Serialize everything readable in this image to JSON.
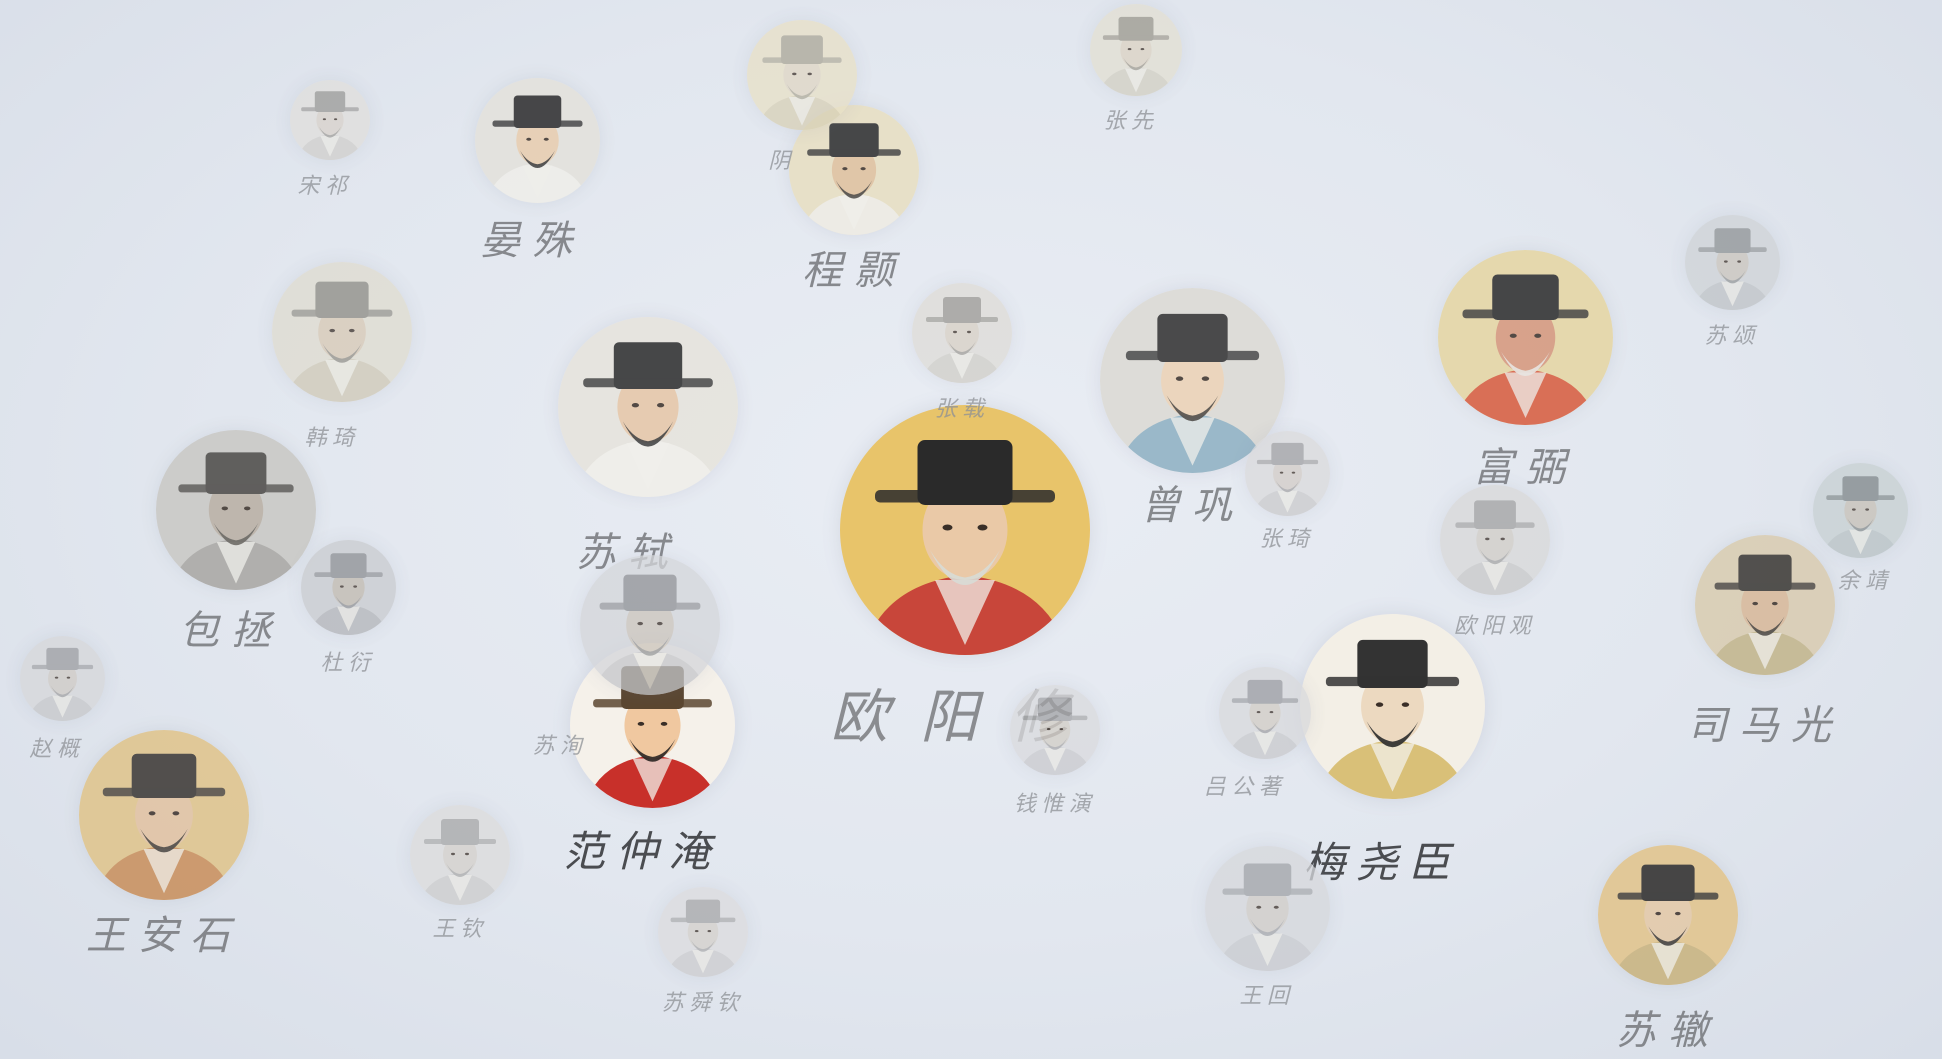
{
  "people": [
    {
      "id": "ouyangxiu",
      "name": "欧阳修",
      "tier": "hero",
      "palette": {
        "bg": "#e8c46a",
        "robe": "#c8463a",
        "hat": "#2a2a2a",
        "face": "#eac9a7",
        "beard": "#d8dcd6"
      }
    },
    {
      "id": "fanzhongyan",
      "name": "范仲淹",
      "tier": "strong",
      "palette": {
        "bg": "#f5f1ea",
        "robe": "#c8302a",
        "hat": "#5a4630",
        "face": "#f0c8a0",
        "beard": "#2a2522"
      }
    },
    {
      "id": "meiyaochen",
      "name": "梅尧臣",
      "tier": "strong",
      "palette": {
        "bg": "#f3efe6",
        "robe": "#d9c078",
        "hat": "#333333",
        "face": "#ecd9c0",
        "beard": "#2b2b2b"
      }
    },
    {
      "id": "sushi",
      "name": "苏轼",
      "tier": "mid",
      "palette": {
        "bg": "#e7e4dc",
        "robe": "#f1efe9",
        "hat": "#2b2b2b",
        "face": "#e6c6a6",
        "beard": "#2b2b2b"
      }
    },
    {
      "id": "zenggong",
      "name": "曾巩",
      "tier": "mid",
      "palette": {
        "bg": "#dcdad4",
        "robe": "#8db0c2",
        "hat": "#2f2f2f",
        "face": "#ecd2b4",
        "beard": "#3a3530"
      }
    },
    {
      "id": "fubi",
      "name": "富弼",
      "tier": "mid",
      "palette": {
        "bg": "#e6d6a2",
        "robe": "#d85a3c",
        "hat": "#2a2a2a",
        "face": "#d6967a",
        "beard": "#e9e6e0"
      }
    },
    {
      "id": "simaguang",
      "name": "司马光",
      "tier": "mid",
      "palette": {
        "bg": "#d9ccb0",
        "robe": "#c2b48a",
        "hat": "#3a3632",
        "face": "#d8b898",
        "beard": "#3a3530"
      }
    },
    {
      "id": "wanganshi",
      "name": "王安石",
      "tier": "mid",
      "palette": {
        "bg": "#e0c48a",
        "robe": "#c98e5a",
        "hat": "#3a3632",
        "face": "#e2c2a0",
        "beard": "#3a3530"
      }
    },
    {
      "id": "baozheng",
      "name": "包拯",
      "tier": "mid",
      "palette": {
        "bg": "#c9c8c4",
        "robe": "#a8a6a2",
        "hat": "#4a4844",
        "face": "#b8aea2",
        "beard": "#5a5650"
      }
    },
    {
      "id": "suzhe",
      "name": "苏辙",
      "tier": "mid",
      "palette": {
        "bg": "#e2c48a",
        "robe": "#c9b27c",
        "hat": "#2c2a28",
        "face": "#e4c8a6",
        "beard": "#2c2a28"
      }
    },
    {
      "id": "yanshu",
      "name": "晏殊",
      "tier": "mid",
      "palette": {
        "bg": "#e4e2dc",
        "robe": "#efeee9",
        "hat": "#2b2b2b",
        "face": "#e8cdae",
        "beard": "#2b2b2b"
      }
    },
    {
      "id": "chengyi",
      "name": "程颢",
      "tier": "mid",
      "palette": {
        "bg": "#e8dfc2",
        "robe": "#efece4",
        "hat": "#2b2b2b",
        "face": "#e0c09c",
        "beard": "#3a3632"
      }
    },
    {
      "id": "hanqi",
      "name": "韩琦",
      "tier": "dim",
      "palette": {
        "bg": "#dfdccf",
        "robe": "#cfc9b6",
        "hat": "#8c8a82",
        "face": "#d8c8b4",
        "beard": "#8c8a82"
      }
    },
    {
      "id": "duyan",
      "name": "杜衍",
      "tier": "dim",
      "palette": {
        "bg": "#c9cbcf",
        "robe": "#b2b4b8",
        "hat": "#8c8e92",
        "face": "#c0b8ae",
        "beard": "#8c8e92"
      }
    },
    {
      "id": "zhangxian",
      "name": "张先",
      "tier": "dim",
      "palette": {
        "bg": "#e2dfd2",
        "robe": "#d2cfc2",
        "hat": "#9a978c",
        "face": "#dcd2c2",
        "beard": "#9a978c"
      }
    },
    {
      "id": "zhangzai",
      "name": "张载",
      "tier": "dim",
      "palette": {
        "bg": "#dedcd7",
        "robe": "#d0cec8",
        "hat": "#9a9892",
        "face": "#d8cfc4",
        "beard": "#9a9892"
      }
    },
    {
      "id": "lvgongzhu",
      "name": "吕公著",
      "tier": "dim",
      "palette": {
        "bg": "#d8d9dc",
        "robe": "#c8c9cc",
        "hat": "#9a9ba0",
        "face": "#d2ccc4",
        "beard": "#9a9ba0"
      }
    },
    {
      "id": "wanghui",
      "name": "王回",
      "tier": "dim",
      "palette": {
        "bg": "#d6d8dc",
        "robe": "#c8cace",
        "hat": "#a0a2a6",
        "face": "#d0ccc6",
        "beard": "#a0a2a6"
      }
    },
    {
      "id": "suxun",
      "name": "苏洵",
      "tier": "dim",
      "palette": {
        "bg": "#d4d6da",
        "robe": "#c4c6ca",
        "hat": "#8e9094",
        "face": "#cbc4bb",
        "beard": "#8e9094"
      }
    },
    {
      "id": "yuanjing",
      "name": "余靖",
      "tier": "dim",
      "palette": {
        "bg": "#c7d0d2",
        "robe": "#b8c2c4",
        "hat": "#7e8688",
        "face": "#c6c0b6",
        "beard": "#7e8688"
      }
    },
    {
      "id": "ouyangguan",
      "name": "欧阳观",
      "tier": "dim",
      "palette": {
        "bg": "#d8d8d8",
        "robe": "#c8c8c8",
        "hat": "#a0a0a0",
        "face": "#d0ccc6",
        "beard": "#a0a0a0"
      }
    },
    {
      "id": "zhangqi",
      "name": "张琦",
      "tier": "dim",
      "palette": {
        "bg": "#dadadc",
        "robe": "#cacacc",
        "hat": "#a0a0a2",
        "face": "#d2ccc6",
        "beard": "#a0a0a2"
      }
    },
    {
      "id": "qianweiyan",
      "name": "钱惟演",
      "tier": "dim",
      "palette": {
        "bg": "#d9dadd",
        "robe": "#c9cacd",
        "hat": "#a2a3a6",
        "face": "#d2cdc6",
        "beard": "#a2a3a6"
      }
    },
    {
      "id": "wangcen",
      "name": "王钦",
      "tier": "dim",
      "palette": {
        "bg": "#dcdcdc",
        "robe": "#cccccc",
        "hat": "#a6a6a6",
        "face": "#d4d0ca",
        "beard": "#a6a6a6"
      }
    },
    {
      "id": "suyoudi",
      "name": "苏舜钦",
      "tier": "dim",
      "palette": {
        "bg": "#dcdcde",
        "robe": "#ccccce",
        "hat": "#a6a6a8",
        "face": "#d4d0ca",
        "beard": "#a6a6a8"
      }
    },
    {
      "id": "zhaogai",
      "name": "赵概",
      "tier": "dim",
      "palette": {
        "bg": "#d6d7da",
        "robe": "#c6c7ca",
        "hat": "#9c9da0",
        "face": "#cfcac4",
        "beard": "#9c9da0"
      }
    },
    {
      "id": "songqi",
      "name": "宋祁",
      "tier": "dim",
      "palette": {
        "bg": "#e0dfdc",
        "robe": "#d0cfcc",
        "hat": "#9a9996",
        "face": "#d8d2ca",
        "beard": "#9a9996"
      }
    },
    {
      "id": "sutong",
      "name": "苏颂",
      "tier": "dim",
      "palette": {
        "bg": "#cfd3d6",
        "robe": "#bfc3c6",
        "hat": "#8e9294",
        "face": "#cac4bc",
        "beard": "#8e9294"
      }
    },
    {
      "id": "wangjian",
      "name": "阴",
      "tier": "dim",
      "palette": {
        "bg": "#e8e0c6",
        "robe": "#d8d0b6",
        "hat": "#aaa696",
        "face": "#e0d6c4",
        "beard": "#aaa696"
      }
    }
  ]
}
